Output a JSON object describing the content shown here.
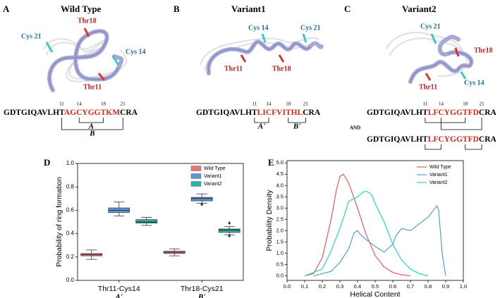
{
  "panels": [
    {
      "label": "A",
      "title": "Wild Type",
      "structure_labels": [
        "Thr18",
        "Cys 21",
        "Cys 14",
        "Thr11"
      ],
      "sequences": [
        {
          "parts": [
            {
              "text": "GDTGIQAVLHT",
              "color": "#000000"
            },
            {
              "text": "AGCYGGTKM",
              "color": "#e0201b"
            },
            {
              "text": "CRA",
              "color": "#000000"
            }
          ]
        }
      ],
      "positions": [
        11,
        14,
        18,
        21
      ],
      "bracket_labels": [
        "A",
        "B"
      ]
    },
    {
      "label": "B",
      "title": "Variant1",
      "structure_labels": [
        "Cys 14",
        "Cys 21",
        "Thr11",
        "Thr18"
      ],
      "sequences": [
        {
          "parts": [
            {
              "text": "GDTGIQAVLHT",
              "color": "#000000"
            },
            {
              "text": "LICFVITHL",
              "color": "#e0201b"
            },
            {
              "text": "CRA",
              "color": "#000000"
            }
          ]
        }
      ],
      "positions": [
        11,
        14,
        18,
        21
      ],
      "bracket_labels": [
        "A'",
        "B'"
      ]
    },
    {
      "label": "C",
      "title": "Variant2",
      "structure_labels": [
        "Cys 21",
        "Thr18",
        "Thr11",
        "Cys 14"
      ],
      "sequences": [
        {
          "parts": [
            {
              "text": "GDTGIQAVLHT",
              "color": "#000000"
            },
            {
              "text": "LFCYGGTFD",
              "color": "#e0201b"
            },
            {
              "text": "CRA",
              "color": "#000000"
            }
          ]
        },
        {
          "parts": [
            {
              "text": "GDTGIQAVLHT",
              "color": "#000000"
            },
            {
              "text": "LFCYGGTFD",
              "color": "#e0201b"
            },
            {
              "text": "CRA",
              "color": "#000000"
            }
          ]
        }
      ],
      "positions": [
        11,
        14,
        18,
        21
      ],
      "conjunction": "AND"
    }
  ],
  "chart_data": [
    {
      "type": "box",
      "panel_label": "D",
      "ylabel": "Probability of ring formation",
      "categories": [
        "Thr11-Cys14",
        "Thr18-Cys21"
      ],
      "category_sublabels": [
        "A'",
        "B'"
      ],
      "ylim": [
        0,
        1
      ],
      "yticks": [
        {
          "value": 0,
          "label": "0.0"
        },
        0.2,
        0.4,
        0.6,
        0.8,
        {
          "value": 1,
          "label": "1.0"
        }
      ],
      "legend": "upper right",
      "series": [
        {
          "name": "Wild Type",
          "color": "#e8777a",
          "values": [
            {
              "min": 0.18,
              "q1": 0.21,
              "median": 0.22,
              "q3": 0.23,
              "max": 0.26
            },
            {
              "min": 0.21,
              "q1": 0.23,
              "median": 0.24,
              "q3": 0.25,
              "max": 0.27
            }
          ]
        },
        {
          "name": "Variant1",
          "color": "#5f96db",
          "values": [
            {
              "min": 0.55,
              "q1": 0.58,
              "median": 0.6,
              "q3": 0.62,
              "max": 0.67
            },
            {
              "min": 0.66,
              "q1": 0.68,
              "median": 0.7,
              "q3": 0.71,
              "max": 0.74,
              "fliers": [
                0.65
              ]
            }
          ]
        },
        {
          "name": "Variant2",
          "color": "#2bb3a4",
          "values": [
            {
              "min": 0.47,
              "q1": 0.49,
              "median": 0.5,
              "q3": 0.52,
              "max": 0.54
            },
            {
              "min": 0.39,
              "q1": 0.41,
              "median": 0.43,
              "q3": 0.44,
              "max": 0.46,
              "fliers": [
                0.49,
                0.38
              ]
            }
          ]
        }
      ]
    },
    {
      "type": "line",
      "panel_label": "E",
      "xlabel": "Helical Content",
      "ylabel": "Probability Density",
      "xlim": [
        0,
        1
      ],
      "ylim": [
        -0.2,
        5.1
      ],
      "xticks": [
        {
          "value": 0,
          "label": "0.0"
        },
        0.1,
        0.2,
        0.3,
        0.4,
        0.5,
        0.6,
        0.7,
        0.8,
        0.9,
        {
          "value": 1,
          "label": "1.0"
        }
      ],
      "yticks": [
        {
          "value": 0,
          "label": "0.0"
        },
        0.5,
        {
          "value": 1,
          "label": "1.0"
        },
        1.5,
        {
          "value": 2,
          "label": "2.0"
        },
        2.5,
        {
          "value": 3,
          "label": "3.0"
        },
        3.5,
        {
          "value": 4,
          "label": "4.0"
        },
        4.5,
        {
          "value": 5,
          "label": "5.0"
        }
      ],
      "legend": "upper right",
      "series": [
        {
          "name": "Wild Type",
          "color": "#f0565a",
          "x": [
            0.1,
            0.15,
            0.2,
            0.25,
            0.28,
            0.3,
            0.32,
            0.35,
            0.4,
            0.45,
            0.5,
            0.55,
            0.6,
            0.65,
            0.7
          ],
          "values": [
            0,
            0.1,
            0.8,
            2.5,
            3.8,
            4.4,
            4.5,
            4.1,
            3.0,
            1.8,
            0.9,
            0.4,
            0.15,
            0.05,
            0
          ]
        },
        {
          "name": "Variant1",
          "color": "#4ea0d8",
          "x": [
            0.15,
            0.25,
            0.3,
            0.35,
            0.38,
            0.4,
            0.42,
            0.45,
            0.5,
            0.55,
            0.6,
            0.62,
            0.65,
            0.7,
            0.75,
            0.8,
            0.85,
            0.86,
            0.88,
            0.9
          ],
          "values": [
            0,
            0.2,
            0.6,
            1.2,
            1.9,
            2.0,
            1.8,
            1.6,
            1.3,
            1.05,
            1.4,
            1.8,
            2.1,
            2.0,
            2.3,
            2.6,
            3.1,
            2.9,
            1.0,
            0
          ]
        },
        {
          "name": "Variant2",
          "color": "#1fd6c0",
          "x": [
            0.1,
            0.2,
            0.25,
            0.3,
            0.33,
            0.35,
            0.4,
            0.43,
            0.45,
            0.48,
            0.5,
            0.55,
            0.6,
            0.65,
            0.7,
            0.75,
            0.8
          ],
          "values": [
            0,
            0.3,
            1.1,
            2.1,
            2.8,
            3.3,
            3.5,
            3.7,
            3.75,
            3.6,
            3.2,
            2.4,
            1.4,
            0.7,
            0.3,
            0.1,
            0
          ]
        }
      ]
    }
  ]
}
